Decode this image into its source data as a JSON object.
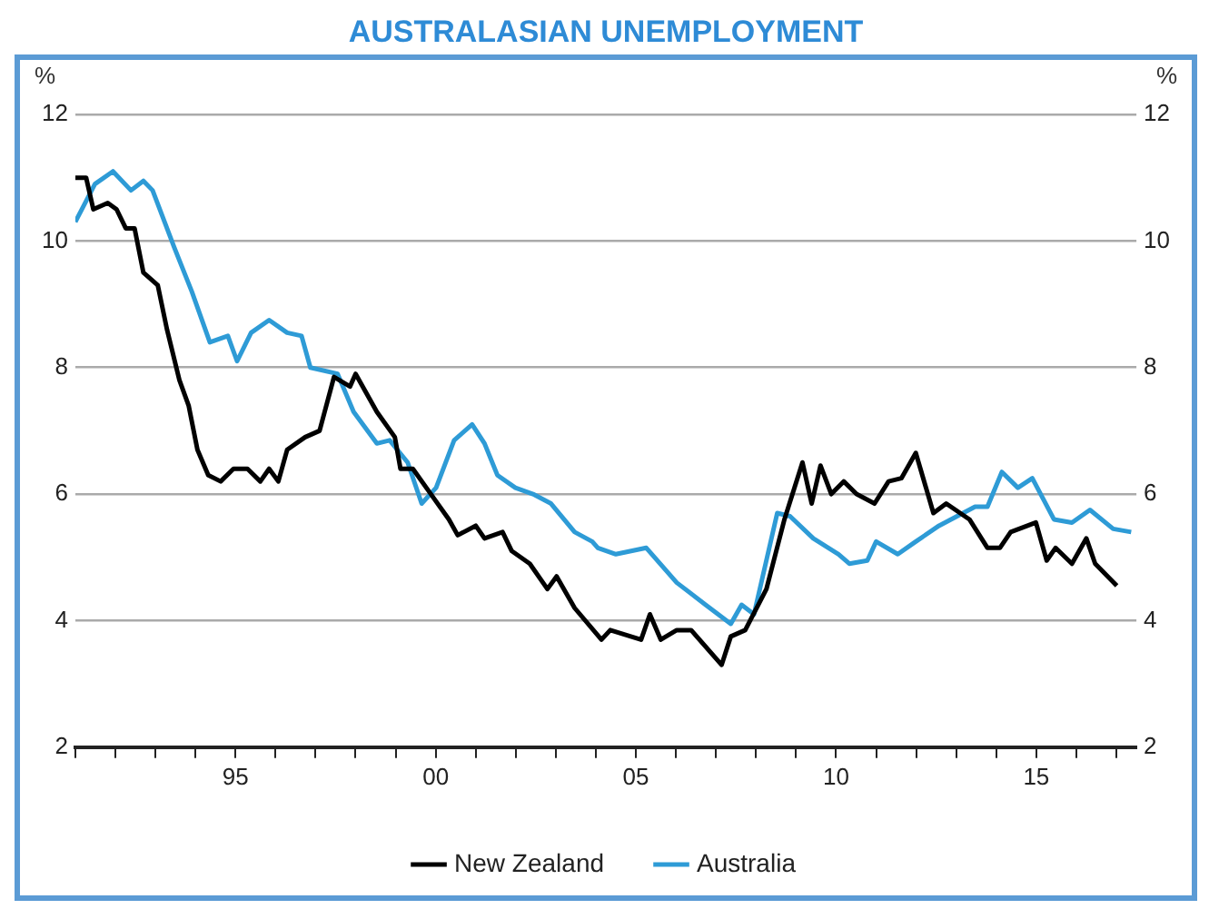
{
  "chart_data": {
    "type": "line",
    "title": "AUSTRALASIAN UNEMPLOYMENT",
    "ylabel": "%",
    "y2label": "%",
    "xlim": [
      1991,
      2017.5
    ],
    "xticks": [
      {
        "value": 1991,
        "label": null
      },
      {
        "value": 1992,
        "label": null
      },
      {
        "value": 1993,
        "label": null
      },
      {
        "value": 1994,
        "label": null
      },
      {
        "value": 1995,
        "label": "95"
      },
      {
        "value": 1996,
        "label": null
      },
      {
        "value": 1997,
        "label": null
      },
      {
        "value": 1998,
        "label": null
      },
      {
        "value": 1999,
        "label": null
      },
      {
        "value": 2000,
        "label": "00"
      },
      {
        "value": 2001,
        "label": null
      },
      {
        "value": 2002,
        "label": null
      },
      {
        "value": 2003,
        "label": null
      },
      {
        "value": 2004,
        "label": null
      },
      {
        "value": 2005,
        "label": "05"
      },
      {
        "value": 2006,
        "label": null
      },
      {
        "value": 2007,
        "label": null
      },
      {
        "value": 2008,
        "label": null
      },
      {
        "value": 2009,
        "label": null
      },
      {
        "value": 2010,
        "label": "10"
      },
      {
        "value": 2011,
        "label": null
      },
      {
        "value": 2012,
        "label": null
      },
      {
        "value": 2013,
        "label": null
      },
      {
        "value": 2014,
        "label": null
      },
      {
        "value": 2015,
        "label": "15"
      },
      {
        "value": 2016,
        "label": null
      },
      {
        "value": 2017,
        "label": null
      }
    ],
    "ylim": [
      2,
      12
    ],
    "yticks": [
      2,
      4,
      6,
      8,
      10,
      12
    ],
    "y2lim": [
      2,
      12
    ],
    "y2ticks": [
      2,
      4,
      6,
      8,
      10,
      12
    ],
    "grid": "y",
    "legend": "bottom",
    "marker": "none",
    "line_style": "solid",
    "series": [
      {
        "name": "New Zealand",
        "color": "#000000",
        "x": [
          1991.0,
          1991.27,
          1991.45,
          1991.81,
          1992.03,
          1992.26,
          1992.48,
          1992.7,
          1993.06,
          1993.29,
          1993.6,
          1993.83,
          1994.05,
          1994.32,
          1994.63,
          1994.95,
          1995.3,
          1995.62,
          1995.84,
          1996.07,
          1996.29,
          1996.74,
          1997.1,
          1997.46,
          1997.86,
          1998.0,
          1998.53,
          1998.98,
          1999.12,
          1999.43,
          1999.88,
          2000.33,
          2000.55,
          2001.0,
          2001.22,
          2001.67,
          2001.9,
          2002.35,
          2002.79,
          2003.02,
          2003.47,
          2004.14,
          2004.36,
          2005.13,
          2005.35,
          2005.62,
          2006.02,
          2006.38,
          2007.14,
          2007.37,
          2007.73,
          2008.26,
          2008.71,
          2009.16,
          2009.39,
          2009.61,
          2009.88,
          2010.19,
          2010.51,
          2010.96,
          2011.31,
          2011.63,
          2011.99,
          2012.43,
          2012.75,
          2013.33,
          2013.78,
          2014.09,
          2014.36,
          2014.99,
          2015.26,
          2015.48,
          2015.89,
          2016.25,
          2016.47,
          2017.01
        ],
        "values": [
          11.0,
          11.0,
          10.5,
          10.6,
          10.5,
          10.2,
          10.2,
          9.5,
          9.3,
          8.6,
          7.8,
          7.4,
          6.7,
          6.3,
          6.2,
          6.4,
          6.4,
          6.2,
          6.4,
          6.2,
          6.7,
          6.9,
          7.0,
          7.85,
          7.7,
          7.9,
          7.3,
          6.9,
          6.4,
          6.4,
          6.0,
          5.6,
          5.35,
          5.5,
          5.3,
          5.4,
          5.1,
          4.9,
          4.5,
          4.7,
          4.2,
          3.7,
          3.85,
          3.7,
          4.1,
          3.7,
          3.85,
          3.85,
          3.3,
          3.75,
          3.85,
          4.5,
          5.6,
          6.5,
          5.85,
          6.45,
          6.0,
          6.2,
          6.0,
          5.85,
          6.2,
          6.25,
          6.65,
          5.7,
          5.85,
          5.6,
          5.15,
          5.15,
          5.4,
          5.55,
          4.95,
          5.15,
          4.9,
          5.3,
          4.9,
          4.55
        ]
      },
      {
        "name": "Australia",
        "color": "#2e9bd6",
        "x": [
          1991.0,
          1991.49,
          1991.94,
          1992.39,
          1992.7,
          1992.93,
          1993.47,
          1993.91,
          1994.36,
          1994.81,
          1995.04,
          1995.39,
          1995.84,
          1996.29,
          1996.65,
          1996.87,
          1997.55,
          1997.95,
          1998.53,
          1998.85,
          1999.3,
          1999.65,
          2000.01,
          2000.46,
          2000.91,
          2001.22,
          2001.54,
          2001.99,
          2002.43,
          2002.88,
          2003.47,
          2003.91,
          2004.05,
          2004.5,
          2005.26,
          2006.02,
          2006.74,
          2007.37,
          2007.64,
          2007.95,
          2008.53,
          2008.85,
          2009.43,
          2010.06,
          2010.33,
          2010.78,
          2011.0,
          2011.54,
          2011.99,
          2012.57,
          2013.02,
          2013.47,
          2013.78,
          2014.14,
          2014.54,
          2014.9,
          2015.44,
          2015.89,
          2016.34,
          2016.92,
          2017.37
        ],
        "values": [
          10.3,
          10.9,
          11.1,
          10.8,
          10.95,
          10.8,
          9.9,
          9.2,
          8.4,
          8.5,
          8.1,
          8.55,
          8.75,
          8.55,
          8.5,
          8.0,
          7.9,
          7.3,
          6.8,
          6.85,
          6.5,
          5.85,
          6.1,
          6.85,
          7.1,
          6.8,
          6.3,
          6.1,
          6.0,
          5.85,
          5.4,
          5.25,
          5.15,
          5.05,
          5.15,
          4.6,
          4.25,
          3.95,
          4.25,
          4.1,
          5.7,
          5.65,
          5.3,
          5.05,
          4.9,
          4.95,
          5.25,
          5.05,
          5.25,
          5.5,
          5.65,
          5.8,
          5.8,
          6.35,
          6.1,
          6.25,
          5.6,
          5.55,
          5.75,
          5.45,
          5.4
        ]
      }
    ]
  }
}
